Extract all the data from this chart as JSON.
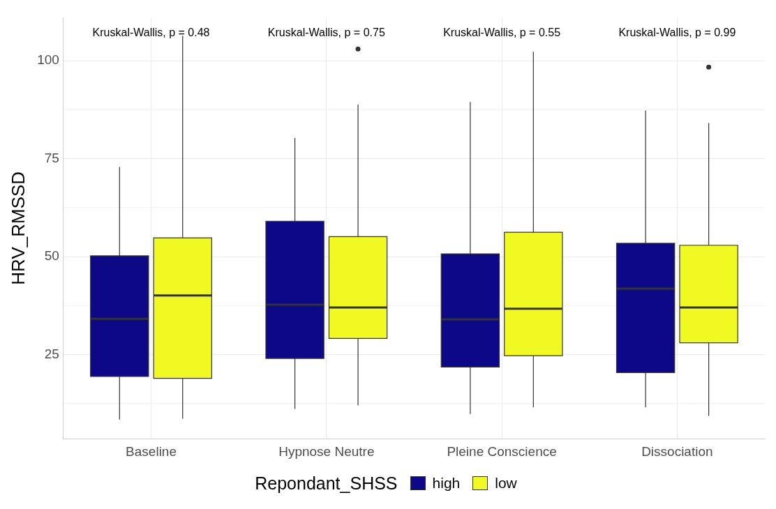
{
  "chart_data": {
    "type": "box",
    "ylabel": "HRV_RMSSD",
    "legend_title": "Repondant_SHSS",
    "legend": "bottom",
    "grid": true,
    "categories": [
      "Baseline",
      "Hypnose Neutre",
      "Pleine Conscience",
      "Dissociation"
    ],
    "ylim": [
      3.5,
      111
    ],
    "yticks": [
      {
        "value": 12.5,
        "label": null
      },
      25,
      {
        "value": 37.5,
        "label": null
      },
      50,
      {
        "value": 62.5,
        "label": null
      },
      75,
      {
        "value": 87.5,
        "label": null
      },
      100
    ],
    "series": [
      {
        "name": "high",
        "color": "#0d0887",
        "boxes": [
          {
            "low": 8.4,
            "q1": 19.4,
            "median": 34.1,
            "q3": 50.2,
            "high": 72.9
          },
          {
            "low": 11.1,
            "q1": 24.0,
            "median": 37.7,
            "q3": 59.0,
            "high": 80.3
          },
          {
            "low": 9.8,
            "q1": 21.8,
            "median": 34.0,
            "q3": 50.7,
            "high": 89.5
          },
          {
            "low": 11.5,
            "q1": 20.4,
            "median": 41.8,
            "q3": 53.4,
            "high": 87.3
          }
        ]
      },
      {
        "name": "low",
        "color": "#f0f921",
        "boxes": [
          {
            "low": 8.6,
            "q1": 18.9,
            "median": 40.1,
            "q3": 54.8,
            "high": 106.4
          },
          {
            "low": 12.0,
            "q1": 29.1,
            "median": 37.0,
            "q3": 55.1,
            "high": 88.8,
            "outliers": [
              103.0
            ]
          },
          {
            "low": 11.5,
            "q1": 24.7,
            "median": 36.7,
            "q3": 56.2,
            "high": 102.3
          },
          {
            "low": 9.3,
            "q1": 28.0,
            "median": 37.0,
            "q3": 52.9,
            "high": 84.1,
            "outliers": [
              98.4
            ]
          }
        ]
      }
    ],
    "annotations": [
      "Kruskal-Wallis, p = 0.48",
      "Kruskal-Wallis, p = 0.75",
      "Kruskal-Wallis, p = 0.55",
      "Kruskal-Wallis, p = 0.99"
    ]
  }
}
